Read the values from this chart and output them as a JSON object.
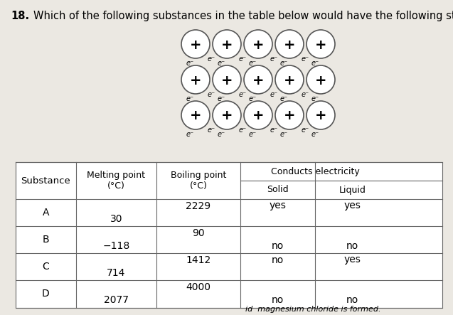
{
  "question_number": "18.",
  "question_text": "Which of the following substances in the table below would have the following structure?",
  "table": {
    "rows": [
      {
        "substance": "A",
        "melting": "30",
        "boiling": "2229",
        "solid": "yes",
        "liquid": "yes"
      },
      {
        "substance": "B",
        "melting": "−118",
        "boiling": "90",
        "solid": "no",
        "liquid": "no"
      },
      {
        "substance": "C",
        "melting": "714",
        "boiling": "1412",
        "solid": "no",
        "liquid": "yes"
      },
      {
        "substance": "D",
        "melting": "2077",
        "boiling": "4000",
        "solid": "no",
        "liquid": "no"
      }
    ]
  },
  "footer_text": "id  magnesium chloride is formed.",
  "background_color": "#ebe8e2"
}
